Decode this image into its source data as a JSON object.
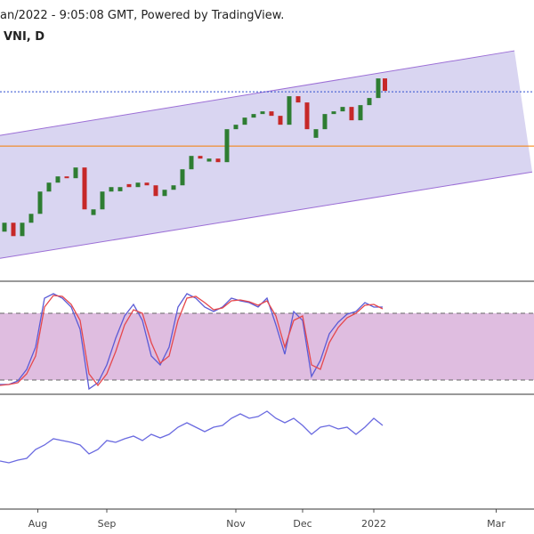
{
  "header": {
    "title": "an/2022 - 9:05:08 GMT, Powered by TradingView.",
    "symbol": "VNI, D"
  },
  "chart_data": [
    {
      "type": "candlestick",
      "xlim": [
        0,
        240
      ],
      "ylim": [
        1180,
        1652
      ],
      "x": [
        2,
        6,
        10,
        14,
        18,
        22,
        26,
        30,
        34,
        38,
        42,
        46,
        50,
        54,
        58,
        62,
        66,
        70,
        74,
        78,
        82,
        86,
        90,
        94,
        98,
        102,
        106,
        110,
        114,
        118,
        122,
        126,
        130,
        134,
        138,
        142,
        146,
        150,
        154,
        158,
        162,
        166,
        170,
        173
      ],
      "open": [
        1262,
        1277,
        1254.5,
        1277,
        1292,
        1329.5,
        1344.5,
        1355,
        1352,
        1370,
        1290,
        1299.5,
        1329.5,
        1330,
        1342,
        1337,
        1344.5,
        1340,
        1322,
        1332.5,
        1340,
        1367,
        1389.5,
        1380,
        1385,
        1379,
        1434.5,
        1442,
        1454,
        1460,
        1464.5,
        1457,
        1442,
        1490,
        1479.5,
        1420,
        1434.5,
        1460,
        1464.5,
        1472,
        1449.5,
        1475,
        1487,
        1520
      ],
      "close": [
        1277,
        1254.5,
        1277,
        1292,
        1329.5,
        1344.5,
        1355,
        1352,
        1370,
        1299.5,
        1299.5,
        1329.5,
        1337,
        1337,
        1337,
        1344.5,
        1340,
        1322,
        1332.5,
        1340,
        1367,
        1389.5,
        1385,
        1385,
        1379,
        1434.5,
        1442,
        1454,
        1460,
        1464.5,
        1457,
        1442,
        1490,
        1479.5,
        1434.5,
        1434.5,
        1460,
        1464.5,
        1472,
        1449.5,
        1475,
        1487,
        1520,
        1499
      ],
      "up_color": "#2e7d32",
      "down_color": "#c62828",
      "channel": {
        "upper": [
          [
            0,
            1424
          ],
          [
            231.2,
            1566.5
          ]
        ],
        "lower": [
          [
            0,
            1217
          ],
          [
            239.2,
            1362.5
          ]
        ],
        "fill": "#d9d5f1",
        "stroke": "#9c6fd6"
      },
      "hlines": [
        {
          "value": 1497.5,
          "color": "#2f4fcf",
          "dash": true
        },
        {
          "value": 1406,
          "color": "#f57c00",
          "dash": false
        }
      ]
    },
    {
      "type": "line",
      "xlim": [
        0,
        240
      ],
      "ylim": [
        9.6,
        107.2
      ],
      "band": [
        20,
        80
      ],
      "band_color": "#dfbde0",
      "x": [
        0,
        4,
        8,
        12,
        16,
        20,
        24,
        28,
        32,
        36,
        40,
        44,
        48,
        52,
        56,
        60,
        64,
        68,
        72,
        76,
        80,
        84,
        88,
        92,
        96,
        100,
        104,
        108,
        112,
        116,
        120,
        124,
        128,
        132,
        136,
        140,
        144,
        148,
        152,
        156,
        160,
        164,
        168,
        172
      ],
      "series": [
        {
          "color": "#5b5bd6",
          "values": [
            16,
            16,
            19.2,
            29.6,
            49.6,
            93.6,
            97.6,
            93.6,
            85.6,
            65.6,
            12,
            17.6,
            33.6,
            57.6,
            77.6,
            88,
            73.6,
            41.6,
            33.6,
            49.6,
            85.6,
            97.6,
            93.6,
            85.6,
            81.6,
            85.6,
            93.6,
            91.2,
            89.6,
            85.6,
            93.6,
            69.6,
            43.2,
            81.6,
            73.6,
            23.2,
            37.6,
            61.6,
            72,
            79.2,
            81.6,
            89.6,
            85.6,
            85.6
          ]
        },
        {
          "color": "#e5484d",
          "values": [
            15.2,
            16,
            17.6,
            25.6,
            41.6,
            85.6,
            96,
            95.2,
            88,
            73.6,
            25.6,
            15.2,
            25.6,
            45.6,
            69.6,
            83.2,
            80,
            53.6,
            35.2,
            41.6,
            73.6,
            93.6,
            95.2,
            89.6,
            83.2,
            84.8,
            91.2,
            92,
            90.4,
            87.2,
            91.2,
            77.6,
            49.6,
            73.6,
            77.6,
            33.6,
            29.6,
            53.6,
            67.2,
            76,
            80,
            87.2,
            88,
            84
          ]
        }
      ]
    },
    {
      "type": "line",
      "xlim": [
        0,
        240
      ],
      "ylim": [
        30,
        155
      ],
      "x": [
        0,
        4,
        8,
        12,
        16,
        20,
        24,
        28,
        32,
        36,
        40,
        44,
        48,
        52,
        56,
        60,
        64,
        68,
        72,
        76,
        80,
        84,
        88,
        92,
        96,
        100,
        104,
        108,
        112,
        116,
        120,
        124,
        128,
        132,
        136,
        140,
        144,
        148,
        152,
        156,
        160,
        164,
        168,
        172
      ],
      "series": [
        {
          "color": "#6a6ae0",
          "values": [
            82,
            80,
            83,
            85,
            95,
            100,
            107,
            105,
            103,
            100,
            90,
            95,
            105,
            103,
            107,
            110,
            105,
            112,
            108,
            112,
            120,
            125,
            120,
            115,
            120,
            122,
            130,
            135,
            130,
            132,
            138,
            130,
            125,
            130,
            122,
            112,
            120,
            122,
            118,
            120,
            112,
            120,
            130,
            122
          ]
        }
      ],
      "xticks": [
        {
          "value": 17,
          "label": "Aug"
        },
        {
          "value": 48,
          "label": "Sep"
        },
        {
          "value": 106,
          "label": "Nov"
        },
        {
          "value": 136,
          "label": "Dec"
        },
        {
          "value": 168,
          "label": "2022"
        },
        {
          "value": 223,
          "label": "Mar"
        }
      ]
    }
  ]
}
